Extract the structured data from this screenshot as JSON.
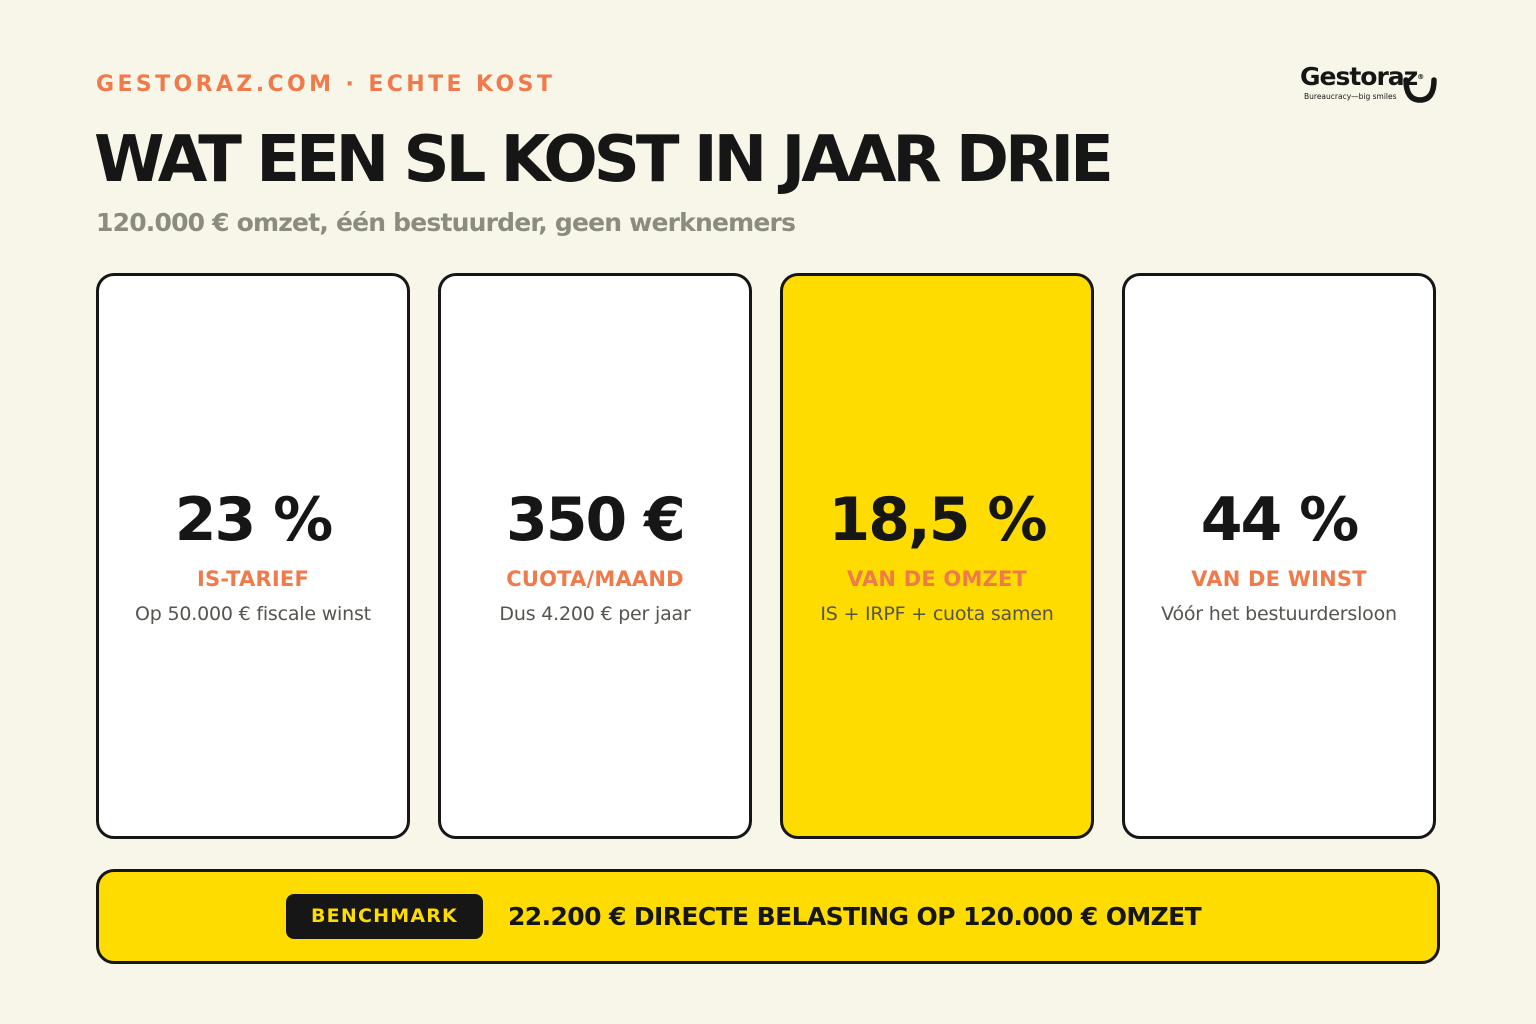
{
  "header": {
    "eyebrow": "GESTORAZ.COM · ECHTE KOST",
    "title": "WAT EEN SL KOST IN JAAR DRIE",
    "subtitle": "120.000 € omzet, één bestuurder, geen werknemers"
  },
  "brand": {
    "name": "Gestoraz",
    "registered_mark": "®",
    "tagline": "Bureaucracy—big smiles",
    "logo_icon": "smile-icon"
  },
  "stats": [
    {
      "value": "23 %",
      "label": "IS-TARIEF",
      "description": "Op 50.000 € fiscale winst",
      "highlight": false
    },
    {
      "value": "350 €",
      "label": "CUOTA/MAAND",
      "description": "Dus 4.200 € per jaar",
      "highlight": false
    },
    {
      "value": "18,5 %",
      "label": "VAN DE OMZET",
      "description": "IS + IRPF + cuota samen",
      "highlight": true
    },
    {
      "value": "44 %",
      "label": "VAN DE WINST",
      "description": "Vóór het bestuurdersloon",
      "highlight": false
    }
  ],
  "benchmark": {
    "badge": "BENCHMARK",
    "text": "22.200 € DIRECTE BELASTING OP 120.000 € OMZET"
  },
  "colors": {
    "background": "#f7f6e8",
    "accent_orange": "#f07a4a",
    "highlight_yellow": "#ffdc00",
    "ink": "#161616",
    "muted_text": "#8b8b80"
  }
}
